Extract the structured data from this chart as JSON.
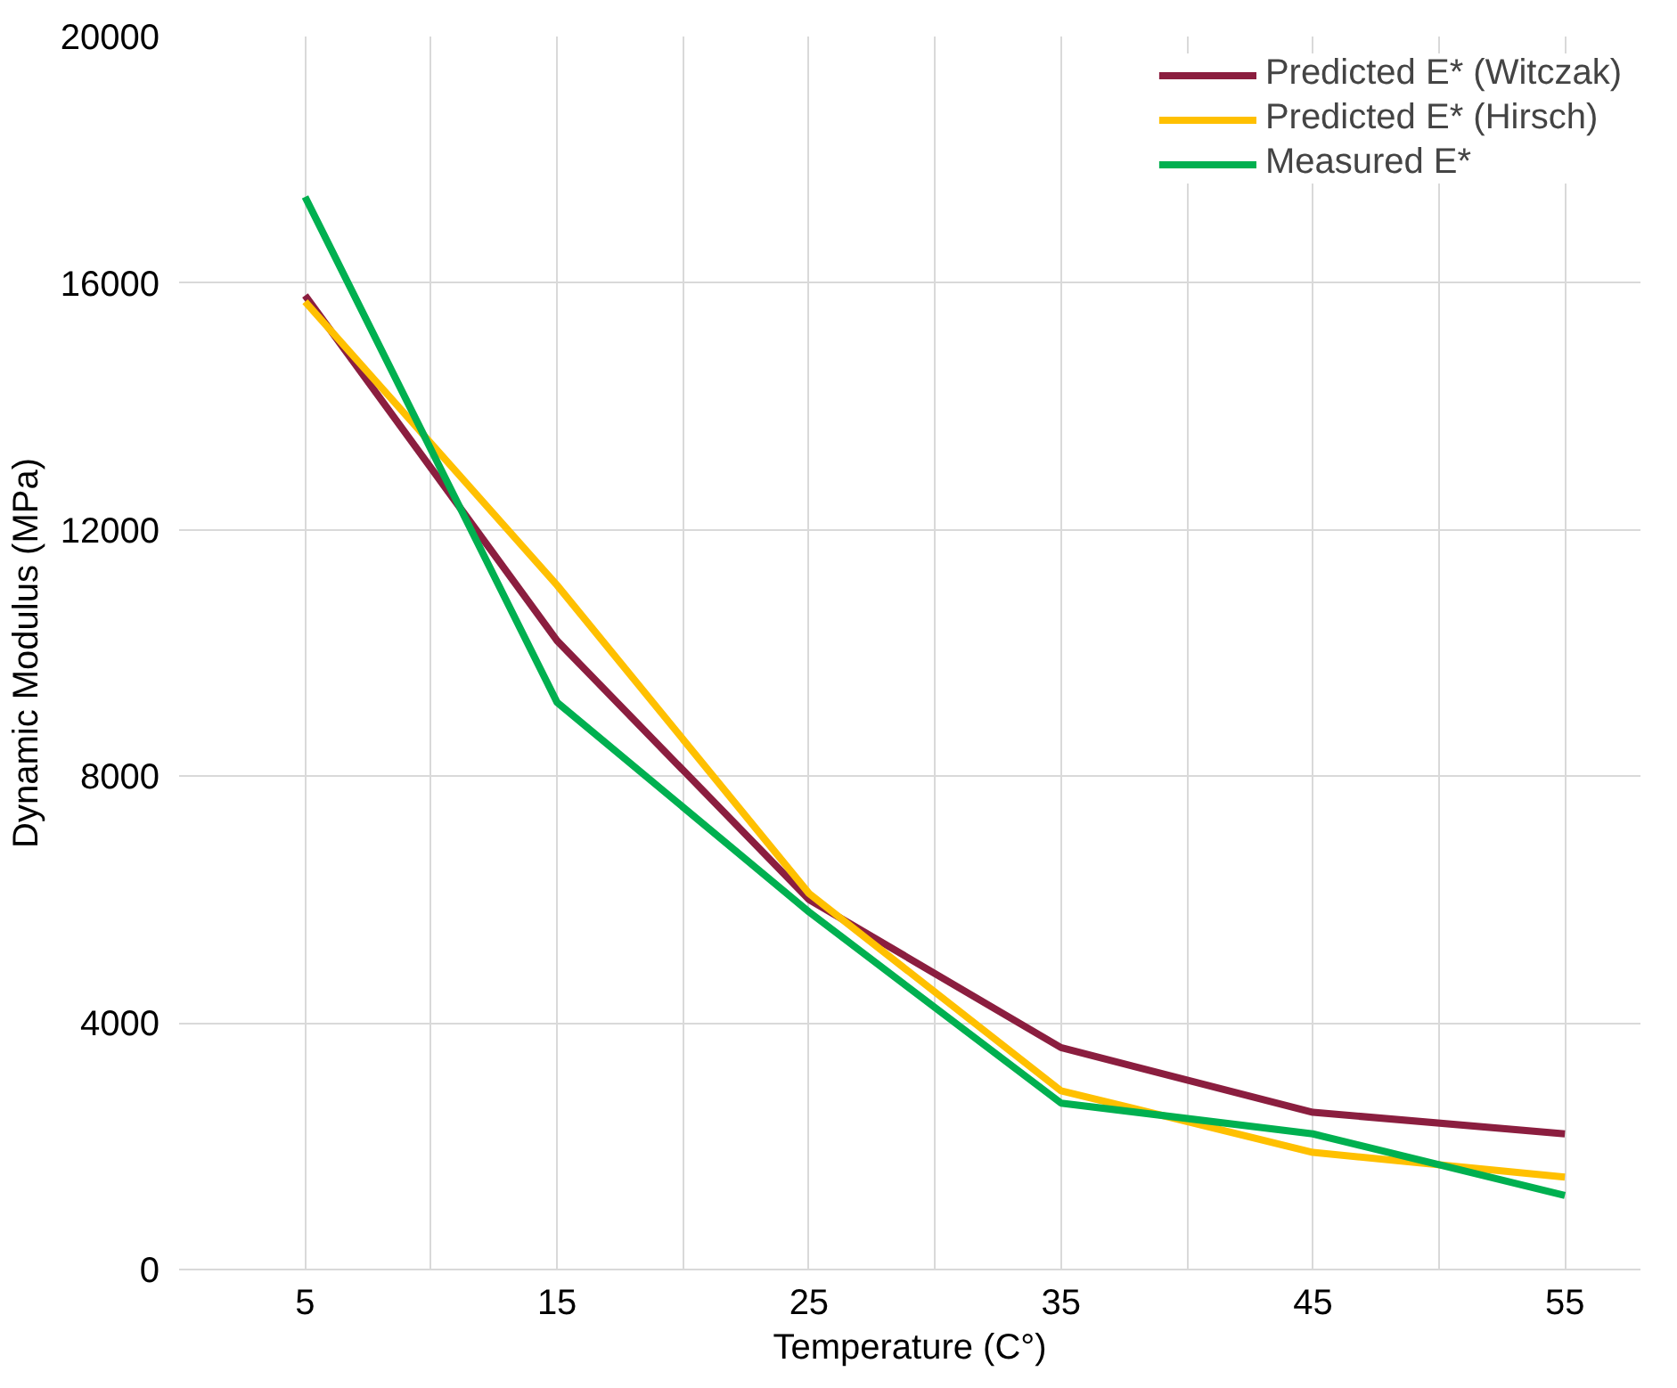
{
  "chart_data": {
    "type": "line",
    "xlabel": "Temperature (C°)",
    "ylabel": "Dynamic Modulus (MPa)",
    "x": [
      5,
      15,
      25,
      35,
      45,
      55
    ],
    "series": [
      {
        "name": "Predicted E* (Witczak)",
        "color": "#8b1e3f",
        "values": [
          15800,
          10200,
          6000,
          3600,
          2550,
          2200
        ]
      },
      {
        "name": "Predicted E* (Hirsch)",
        "color": "#ffc000",
        "values": [
          15700,
          11100,
          6100,
          2900,
          1900,
          1500
        ]
      },
      {
        "name": "Measured E*",
        "color": "#00b050",
        "values": [
          17400,
          9200,
          5800,
          2700,
          2200,
          1200
        ]
      }
    ],
    "xlim": [
      0,
      58
    ],
    "xticks": [
      5,
      {
        "value": 10,
        "label": null
      },
      15,
      {
        "value": 20,
        "label": null
      },
      25,
      {
        "value": 30,
        "label": null
      },
      35,
      {
        "value": 40,
        "label": null
      },
      45,
      {
        "value": 50,
        "label": null
      },
      55
    ],
    "ylim": [
      0,
      20000
    ],
    "yticks": [
      0,
      4000,
      8000,
      12000,
      16000,
      20000
    ],
    "grid": true,
    "legend": "top right",
    "marker": "none",
    "line_style": "solid"
  }
}
